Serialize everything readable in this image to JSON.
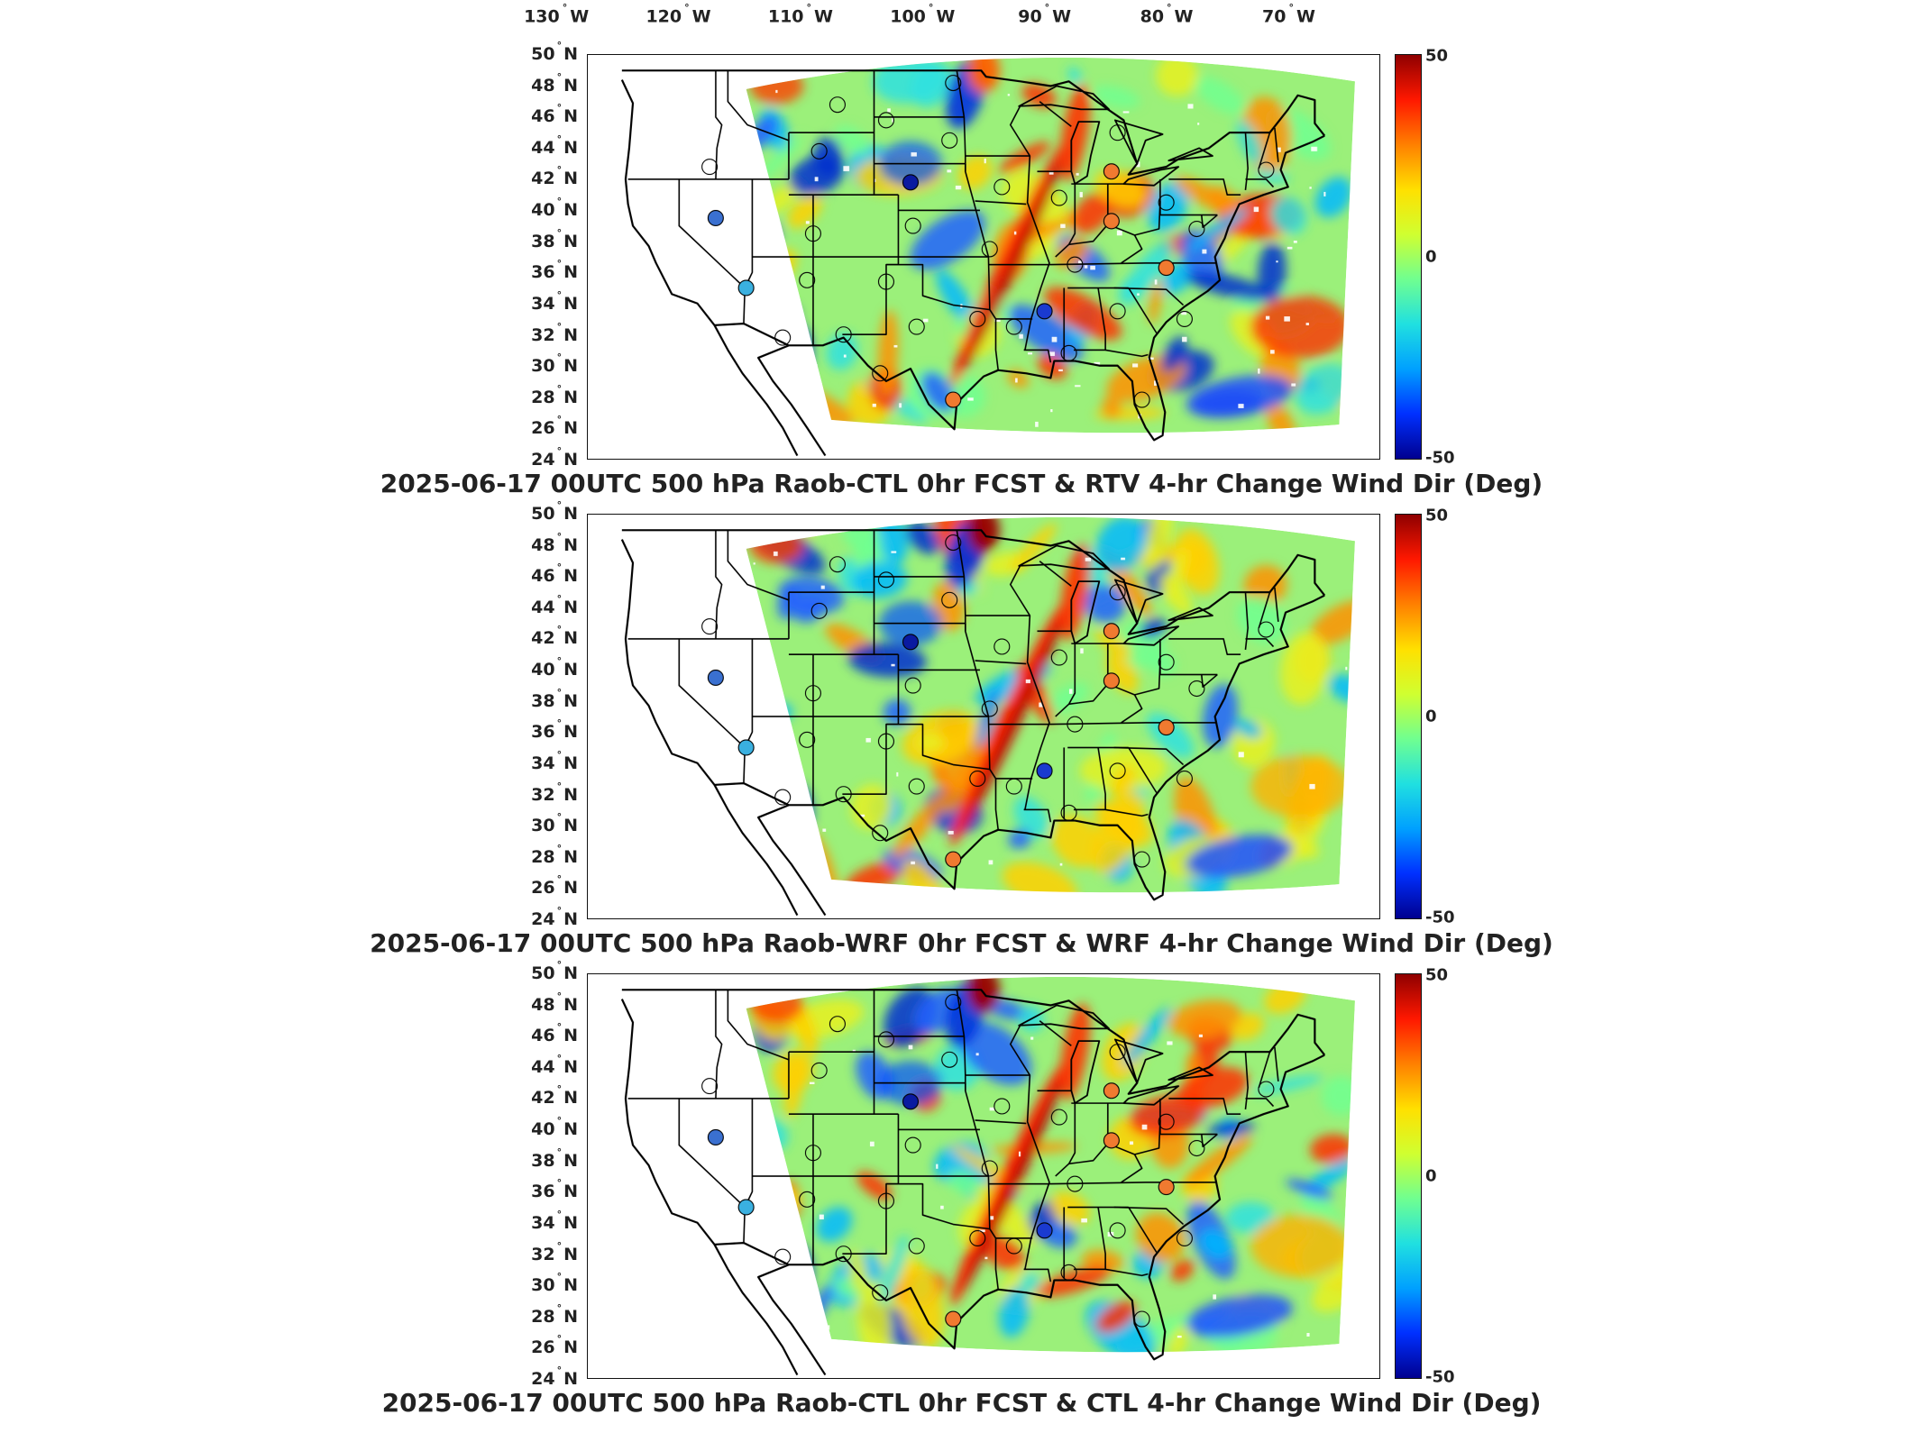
{
  "lon_labels": [
    {
      "deg": "130",
      "hemi": "W"
    },
    {
      "deg": "120",
      "hemi": "W"
    },
    {
      "deg": "110",
      "hemi": "W"
    },
    {
      "deg": "100",
      "hemi": "W"
    },
    {
      "deg": "90",
      "hemi": "W"
    },
    {
      "deg": "80",
      "hemi": "W"
    },
    {
      "deg": "70",
      "hemi": "W"
    }
  ],
  "lat_labels": [
    {
      "deg": "50",
      "hemi": "N"
    },
    {
      "deg": "48",
      "hemi": "N"
    },
    {
      "deg": "46",
      "hemi": "N"
    },
    {
      "deg": "44",
      "hemi": "N"
    },
    {
      "deg": "42",
      "hemi": "N"
    },
    {
      "deg": "40",
      "hemi": "N"
    },
    {
      "deg": "38",
      "hemi": "N"
    },
    {
      "deg": "36",
      "hemi": "N"
    },
    {
      "deg": "34",
      "hemi": "N"
    },
    {
      "deg": "32",
      "hemi": "N"
    },
    {
      "deg": "30",
      "hemi": "N"
    },
    {
      "deg": "28",
      "hemi": "N"
    },
    {
      "deg": "26",
      "hemi": "N"
    },
    {
      "deg": "24",
      "hemi": "N"
    }
  ],
  "colorbar": {
    "min_label": "-50",
    "mid_label": "0",
    "max_label": "50",
    "colors": [
      "#00008f",
      "#0030ff",
      "#00a0ff",
      "#20e0e0",
      "#70ff90",
      "#d0ff30",
      "#ffe000",
      "#ff8000",
      "#ff1800",
      "#8f0000"
    ]
  },
  "panels": [
    {
      "title": "2025-06-17 00UTC 500 hPa Raob-CTL 0hr FCST & RTV 4-hr Change Wind Dir (Deg)"
    },
    {
      "title": "2025-06-17 00UTC 500 hPa Raob-WRF 0hr FCST & WRF 4-hr Change Wind Dir (Deg)"
    },
    {
      "title": "2025-06-17 00UTC 500 hPa Raob-CTL 0hr FCST & CTL 4-hr Change Wind Dir (Deg)"
    }
  ],
  "stations": [
    {
      "lon": -97.5,
      "lat": 48.2,
      "color": "none"
    },
    {
      "lon": -107.0,
      "lat": 46.8,
      "color": "none"
    },
    {
      "lon": -103.0,
      "lat": 45.8,
      "color": "none"
    },
    {
      "lon": -97.8,
      "lat": 44.5,
      "color": "none"
    },
    {
      "lon": -84.0,
      "lat": 45.0,
      "color": "none"
    },
    {
      "lon": -117.5,
      "lat": 42.8,
      "color": "none"
    },
    {
      "lon": -108.5,
      "lat": 43.8,
      "color": "none"
    },
    {
      "lon": -101.0,
      "lat": 41.8,
      "color": "#0a1aa0"
    },
    {
      "lon": -93.5,
      "lat": 41.5,
      "color": "none"
    },
    {
      "lon": -88.8,
      "lat": 40.8,
      "color": "none"
    },
    {
      "lon": -84.5,
      "lat": 42.5,
      "color": "#f07a30"
    },
    {
      "lon": -80.0,
      "lat": 40.5,
      "color": "none"
    },
    {
      "lon": -71.8,
      "lat": 42.6,
      "color": "none"
    },
    {
      "lon": -117.0,
      "lat": 39.5,
      "color": "#3a70d0"
    },
    {
      "lon": -109.0,
      "lat": 38.5,
      "color": "none"
    },
    {
      "lon": -100.8,
      "lat": 39.0,
      "color": "none"
    },
    {
      "lon": -94.5,
      "lat": 37.5,
      "color": "none"
    },
    {
      "lon": -84.5,
      "lat": 39.3,
      "color": "#f07a30"
    },
    {
      "lon": -77.5,
      "lat": 38.8,
      "color": "none"
    },
    {
      "lon": -114.5,
      "lat": 35.0,
      "color": "#3ab0e0"
    },
    {
      "lon": -109.5,
      "lat": 35.5,
      "color": "none"
    },
    {
      "lon": -103.0,
      "lat": 35.4,
      "color": "none"
    },
    {
      "lon": -87.5,
      "lat": 36.5,
      "color": "none"
    },
    {
      "lon": -80.0,
      "lat": 36.3,
      "color": "#f07a30"
    },
    {
      "lon": -95.5,
      "lat": 33.0,
      "color": "none"
    },
    {
      "lon": -90.0,
      "lat": 33.5,
      "color": "#1a3ad0"
    },
    {
      "lon": -84.0,
      "lat": 33.5,
      "color": "none"
    },
    {
      "lon": -78.5,
      "lat": 33.0,
      "color": "none"
    },
    {
      "lon": -111.5,
      "lat": 31.8,
      "color": "none"
    },
    {
      "lon": -106.5,
      "lat": 32.0,
      "color": "none"
    },
    {
      "lon": -100.5,
      "lat": 32.5,
      "color": "none"
    },
    {
      "lon": -92.5,
      "lat": 32.5,
      "color": "none"
    },
    {
      "lon": -88.0,
      "lat": 30.8,
      "color": "none"
    },
    {
      "lon": -103.5,
      "lat": 29.5,
      "color": "none"
    },
    {
      "lon": -97.5,
      "lat": 27.8,
      "color": "#f07a30"
    },
    {
      "lon": -82.0,
      "lat": 27.8,
      "color": "none"
    }
  ]
}
